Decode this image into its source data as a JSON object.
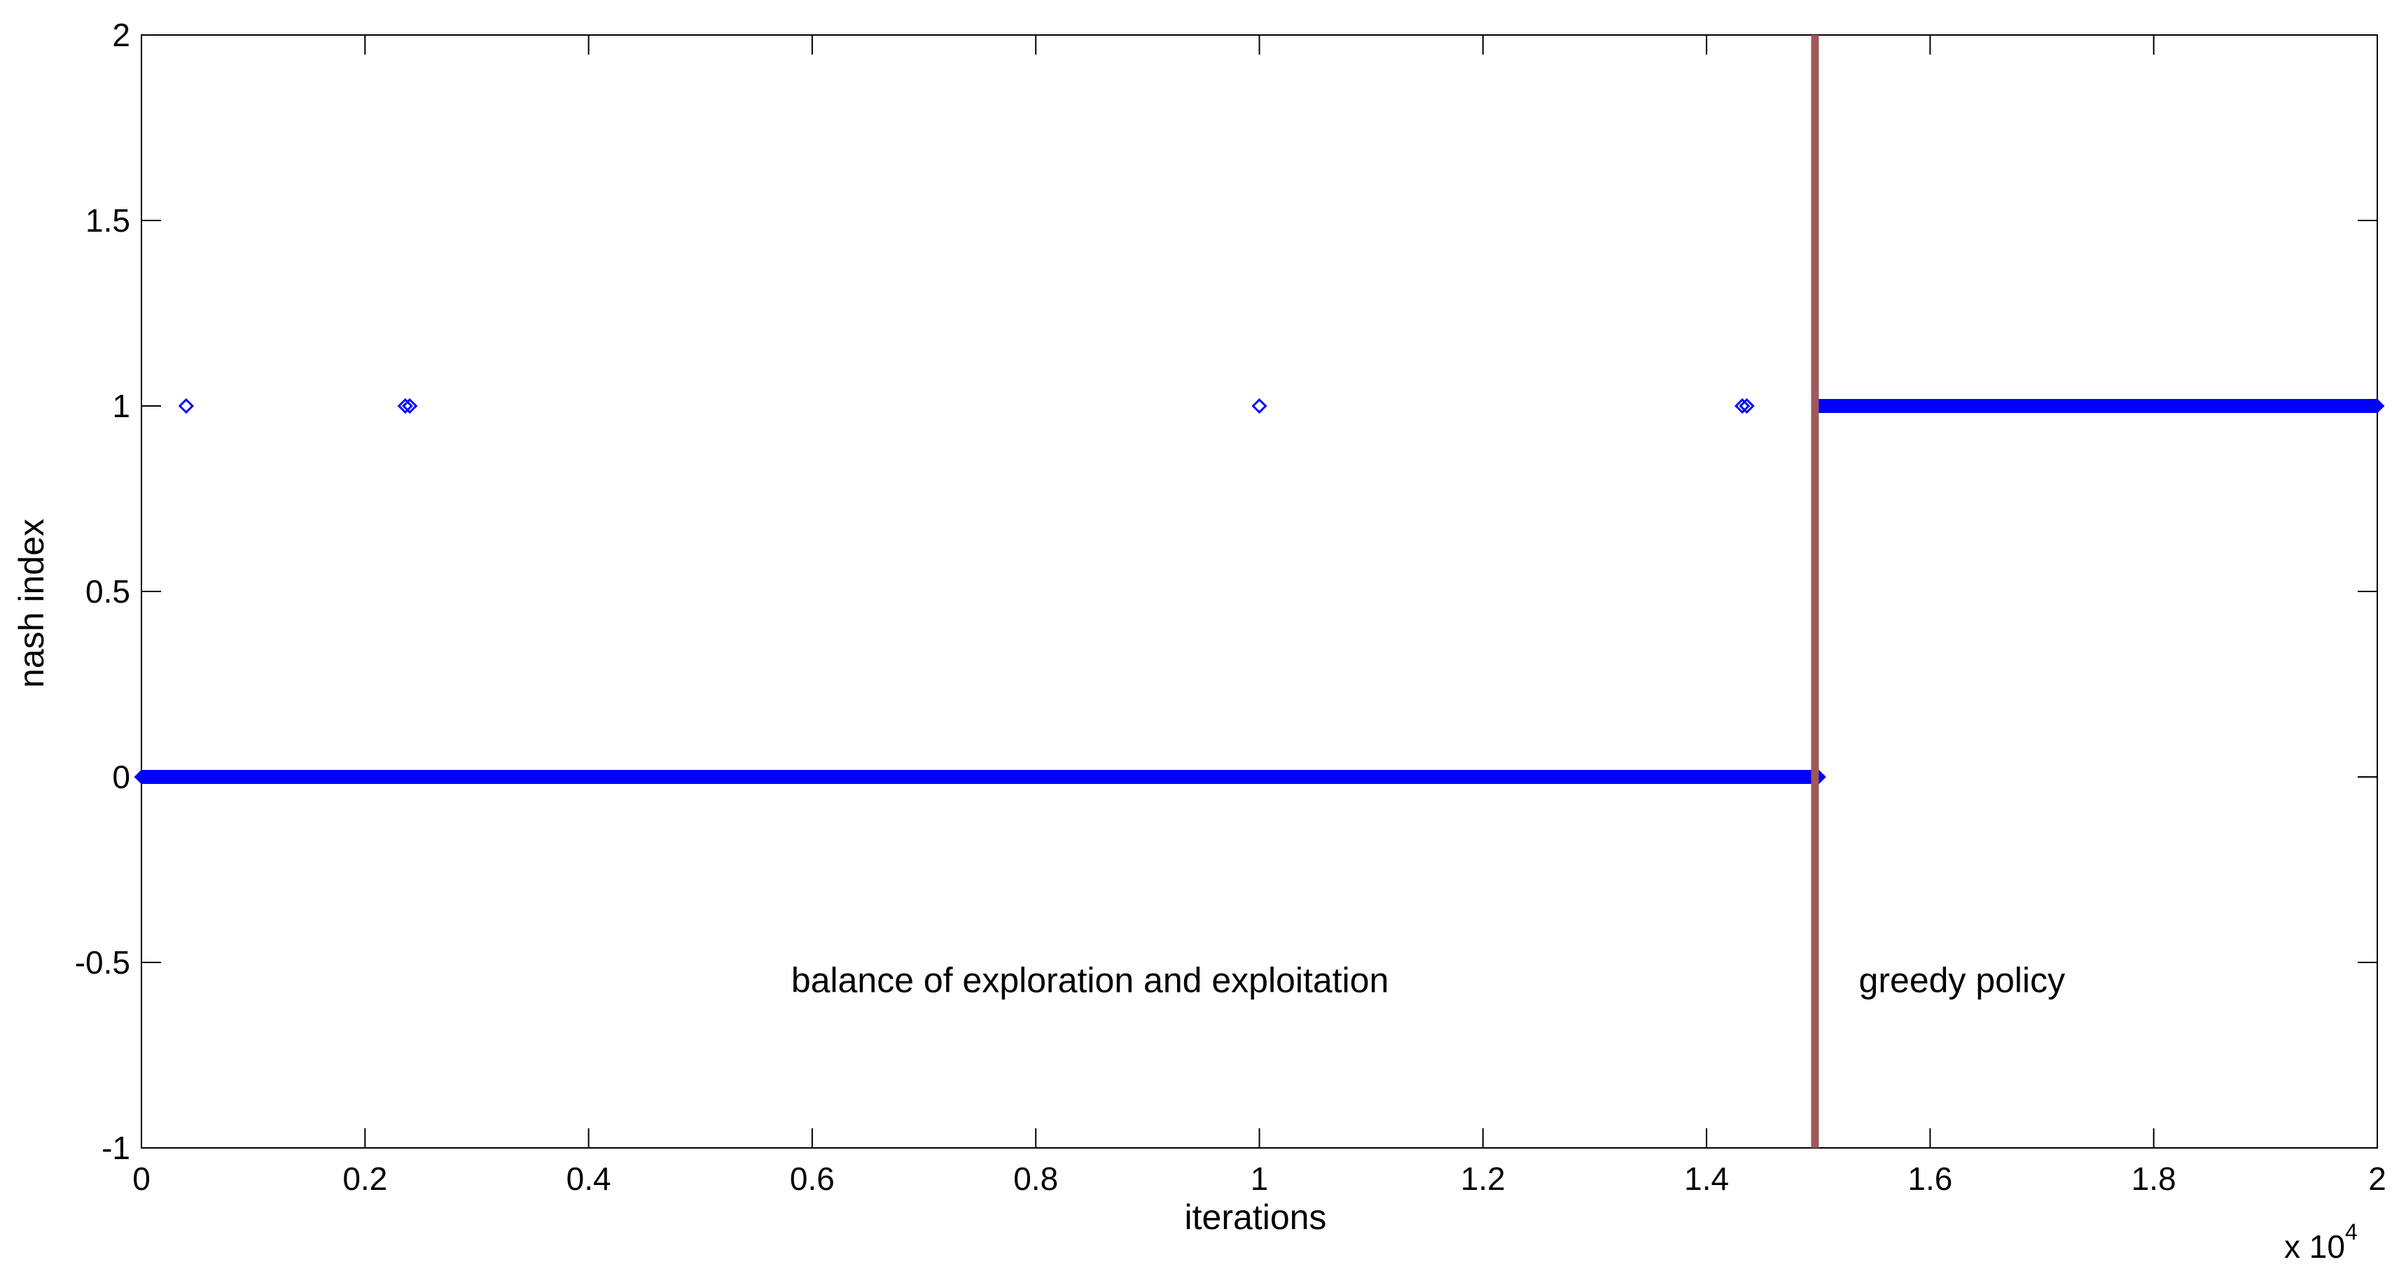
{
  "chart_data": {
    "type": "scatter",
    "title": "",
    "xlabel": "iterations",
    "ylabel": "nash index",
    "x_multiplier_label": "x 10",
    "x_multiplier_exponent": "4",
    "xlim": [
      0,
      2
    ],
    "ylim": [
      -1,
      2
    ],
    "x_ticks": [
      0,
      0.2,
      0.4,
      0.6,
      0.8,
      1,
      1.2,
      1.4,
      1.6,
      1.8,
      2
    ],
    "x_tick_labels": [
      "0",
      "0.2",
      "0.4",
      "0.6",
      "0.8",
      "1",
      "1.2",
      "1.4",
      "1.6",
      "1.8",
      "2"
    ],
    "y_ticks": [
      -1,
      -0.5,
      0,
      0.5,
      1,
      1.5,
      2
    ],
    "y_tick_labels": [
      "-1",
      "-0.5",
      "0",
      "0.5",
      "1",
      "1.5",
      "2"
    ],
    "grid": false,
    "marker": "diamond",
    "marker_color": "#0000ff",
    "series": [
      {
        "segments": [
          {
            "x_start": 0,
            "x_end": 1.5,
            "y": 0
          },
          {
            "x_start": 1.5,
            "x_end": 2,
            "y": 1
          }
        ],
        "points": [
          {
            "x": 0.04,
            "y": 1
          },
          {
            "x": 0.236,
            "y": 1
          },
          {
            "x": 0.24,
            "y": 1
          },
          {
            "x": 1,
            "y": 1
          },
          {
            "x": 1.432,
            "y": 1
          },
          {
            "x": 1.436,
            "y": 1
          },
          {
            "x": 1.5,
            "y": 0
          }
        ]
      }
    ],
    "divider": {
      "x": 1.497,
      "color": "#a0575a"
    },
    "annotations": [
      {
        "text": "balance of exploration and exploitation",
        "x": 0.6,
        "y": -0.58
      },
      {
        "text": "greedy policy",
        "x": 1.555,
        "y": -0.58
      }
    ]
  }
}
